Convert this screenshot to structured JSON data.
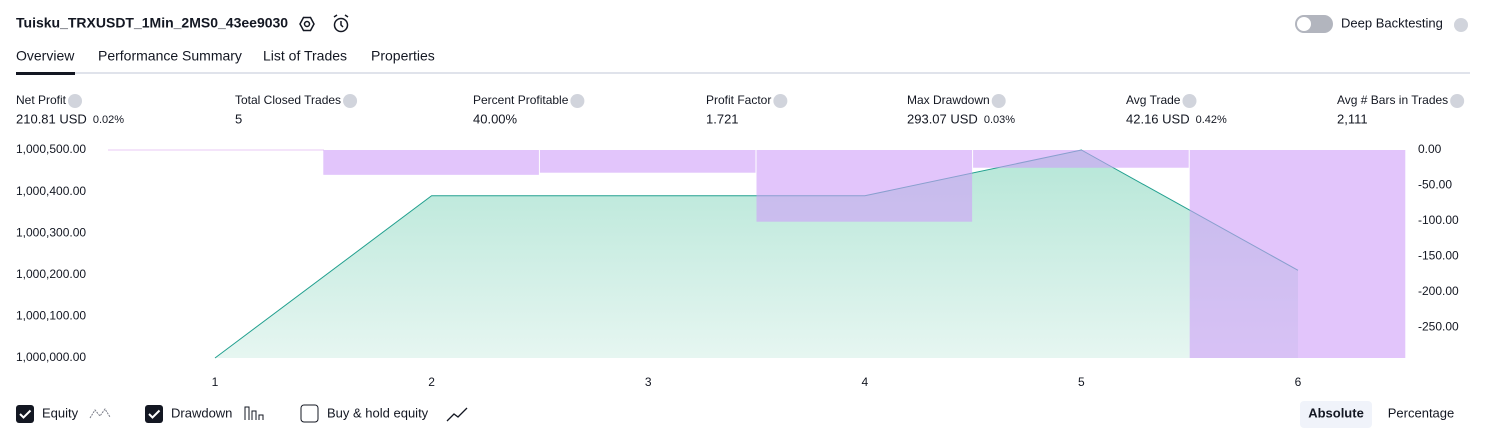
{
  "header": {
    "title": "Tuisku_TRXUSDT_1Min_2MS0_43ee9030",
    "deep_backtesting": "Deep Backtesting"
  },
  "tabs": [
    "Overview",
    "Performance Summary",
    "List of Trades",
    "Properties"
  ],
  "metrics": [
    {
      "label": "Net Profit",
      "value": "210.81 USD",
      "percent": "0.02%",
      "color": "#089981"
    },
    {
      "label": "Total Closed Trades",
      "value": "5",
      "color": "#131722"
    },
    {
      "label": "Percent Profitable",
      "value": "40.00%",
      "color": "#089981"
    },
    {
      "label": "Profit Factor",
      "value": "1.721",
      "color": "#089981"
    },
    {
      "label": "Max Drawdown",
      "value": "293.07 USD",
      "percent": "0.03%",
      "color": "#f23645"
    },
    {
      "label": "Avg Trade",
      "value": "42.16 USD",
      "percent": "0.42%",
      "color": "#089981"
    },
    {
      "label": "Avg # Bars in Trades",
      "value": "2,111",
      "color": "#131722"
    }
  ],
  "chart_data": {
    "type": "combo",
    "categories": [
      "1",
      "2",
      "3",
      "4",
      "5",
      "6"
    ],
    "series": [
      {
        "name": "Equity",
        "type": "area",
        "color": "#22a08f",
        "values": [
          1000000,
          1000390,
          1000390,
          1000390,
          1000500,
          1000210.81
        ]
      },
      {
        "name": "Drawdown",
        "type": "bar",
        "axis": "y2",
        "color": "#ce9ef8",
        "values": [
          0,
          -35,
          -32,
          -101,
          -25,
          -293.07
        ]
      }
    ],
    "ylim": [
      1000000,
      1000500
    ],
    "yticks": [
      {
        "value": 1000000,
        "label": "1,000,000.00"
      },
      {
        "value": 1000100,
        "label": "1,000,100.00"
      },
      {
        "value": 1000200,
        "label": "1,000,200.00"
      },
      {
        "value": 1000300,
        "label": "1,000,300.00"
      },
      {
        "value": 1000400,
        "label": "1,000,400.00"
      },
      {
        "value": 1000500,
        "label": "1,000,500.00"
      }
    ],
    "y2lim": [
      -293.07,
      0
    ],
    "y2ticks": [
      {
        "value": 0,
        "label": "0.00"
      },
      {
        "value": -50,
        "label": "-50.00"
      },
      {
        "value": -100,
        "label": "-100.00"
      },
      {
        "value": -150,
        "label": "-150.00"
      },
      {
        "value": -200,
        "label": "-200.00"
      },
      {
        "value": -250,
        "label": "-250.00"
      }
    ]
  },
  "footer": {
    "buy_hold": "Buy & hold equity",
    "absolute": "Absolute",
    "percentage": "Percentage"
  }
}
